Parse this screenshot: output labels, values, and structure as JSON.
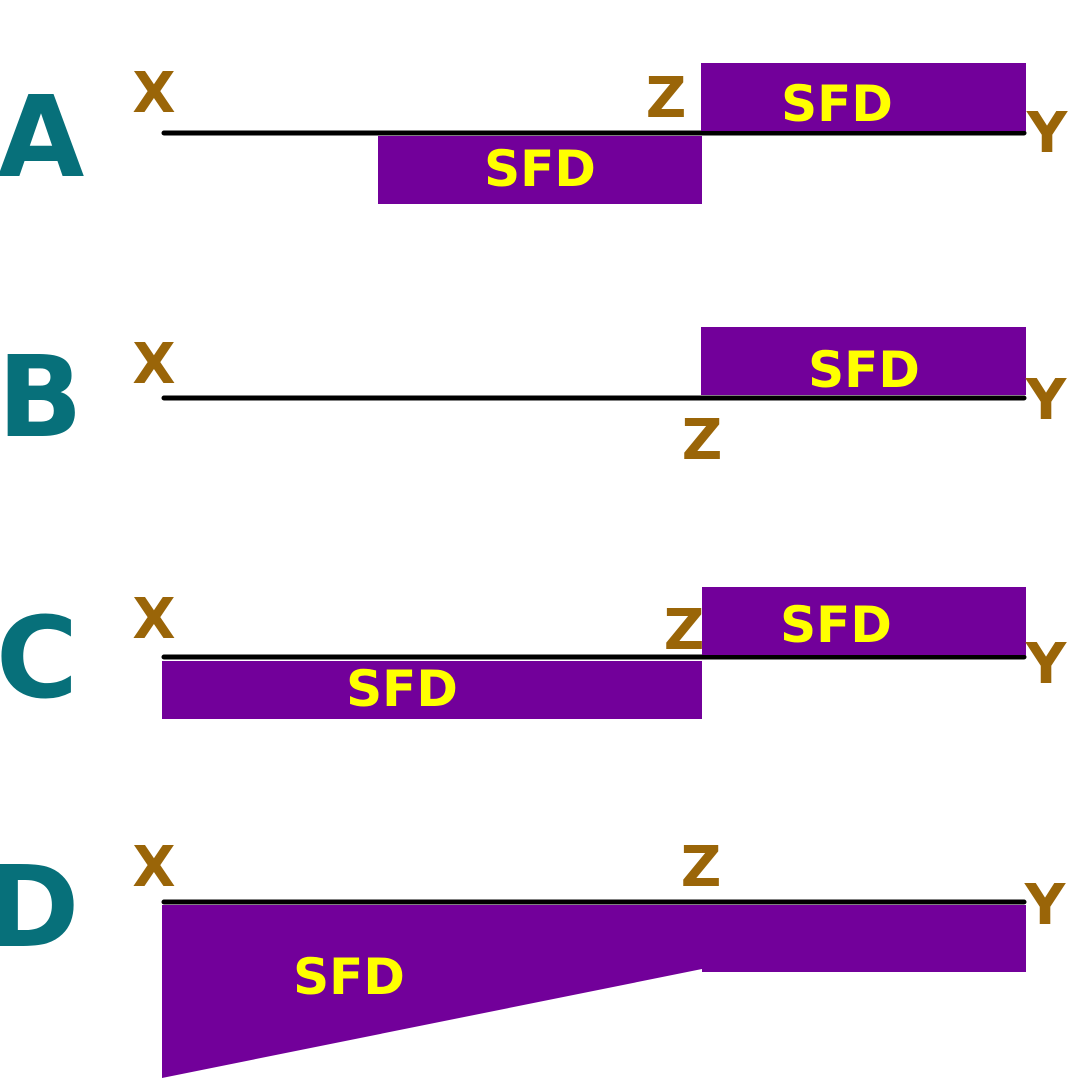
{
  "colors": {
    "option_letter": "#07707a",
    "point_label": "#9a6508",
    "sfd_fill": "#72009a",
    "sfd_text": "#ffff00",
    "beam": "#000000",
    "background": "#ffffff"
  },
  "options": [
    {
      "letter": "A",
      "point_x": "X",
      "point_y": "Y",
      "point_z": "Z",
      "sfd_upper_text": "SFD",
      "sfd_lower_text": "SFD"
    },
    {
      "letter": "B",
      "point_x": "X",
      "point_y": "Y",
      "point_z": "Z",
      "sfd_upper_text": "SFD"
    },
    {
      "letter": "C",
      "point_x": "X",
      "point_y": "Y",
      "point_z": "Z",
      "sfd_upper_text": "SFD",
      "sfd_lower_text": "SFD"
    },
    {
      "letter": "D",
      "point_x": "X",
      "point_y": "Y",
      "point_z": "Z",
      "sfd_lower_text": "SFD"
    }
  ]
}
